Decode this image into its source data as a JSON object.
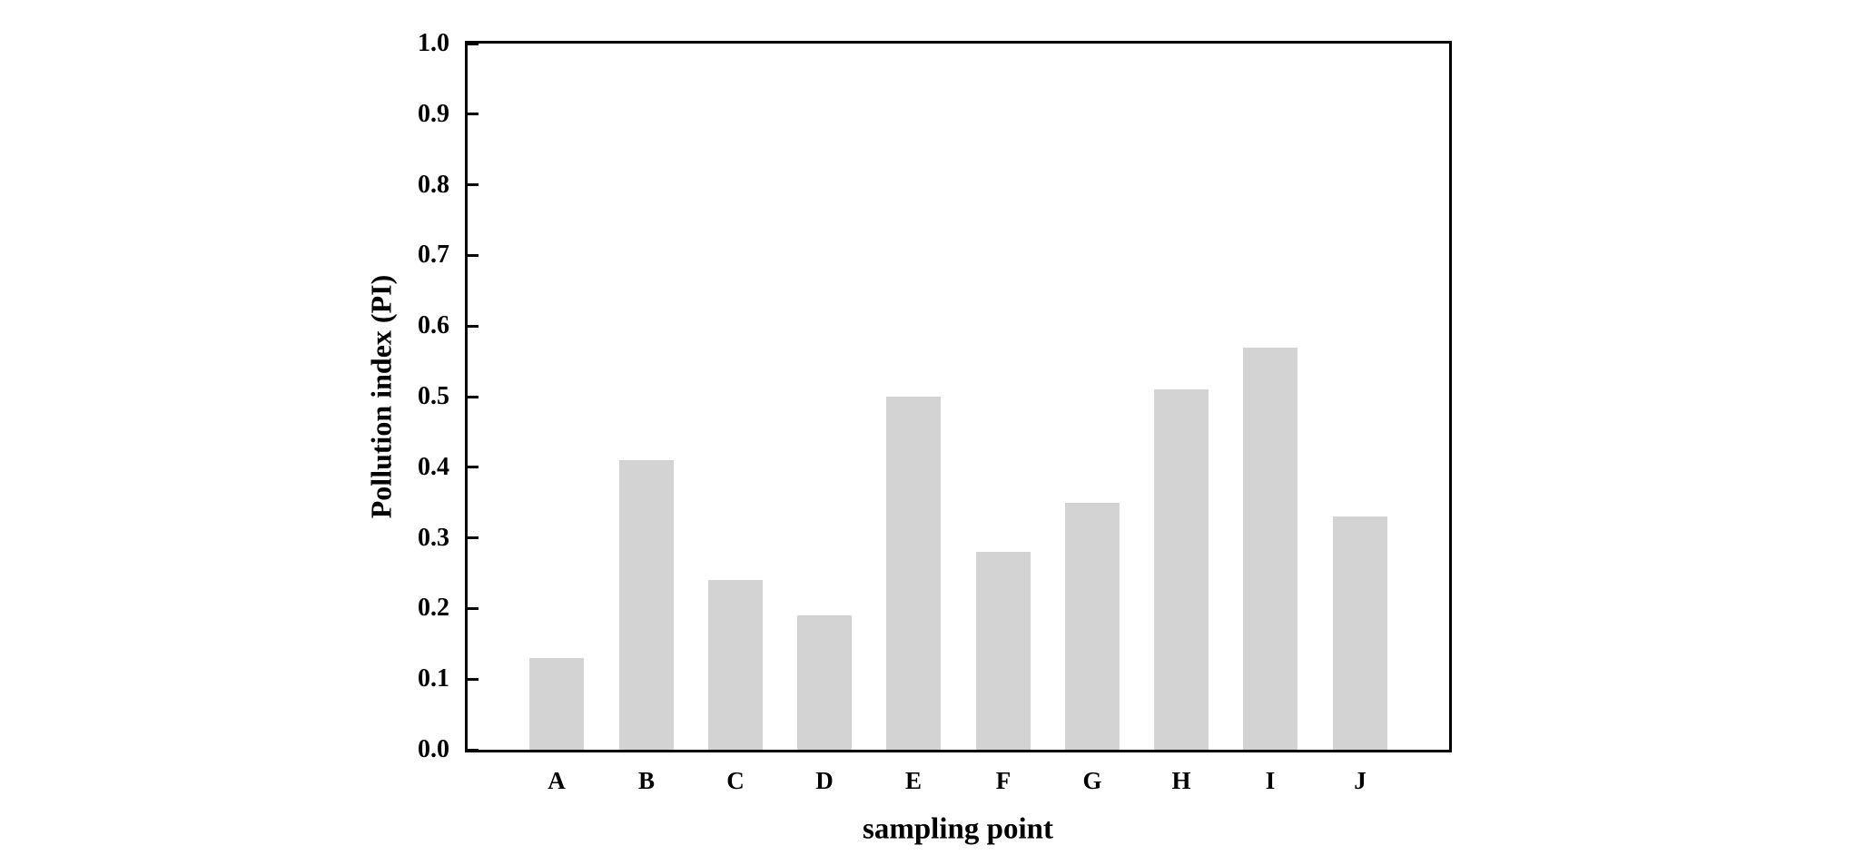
{
  "chart_data": {
    "type": "bar",
    "categories": [
      "A",
      "B",
      "C",
      "D",
      "E",
      "F",
      "G",
      "H",
      "I",
      "J"
    ],
    "values": [
      0.13,
      0.41,
      0.24,
      0.19,
      0.5,
      0.28,
      0.35,
      0.51,
      0.57,
      0.33
    ],
    "title": "",
    "xlabel": "sampling point",
    "ylabel": "Pollution index (PI)",
    "ylim": [
      0.0,
      1.0
    ],
    "ytick_labels": [
      "0.0",
      "0.1",
      "0.2",
      "0.3",
      "0.4",
      "0.5",
      "0.6",
      "0.7",
      "0.8",
      "0.9",
      "1.0"
    ],
    "grid": false,
    "legend": null,
    "bar_color": "#d3d3d3",
    "axis_color": "#000000",
    "text_color": "#000000",
    "background_color": "#ffffff"
  }
}
